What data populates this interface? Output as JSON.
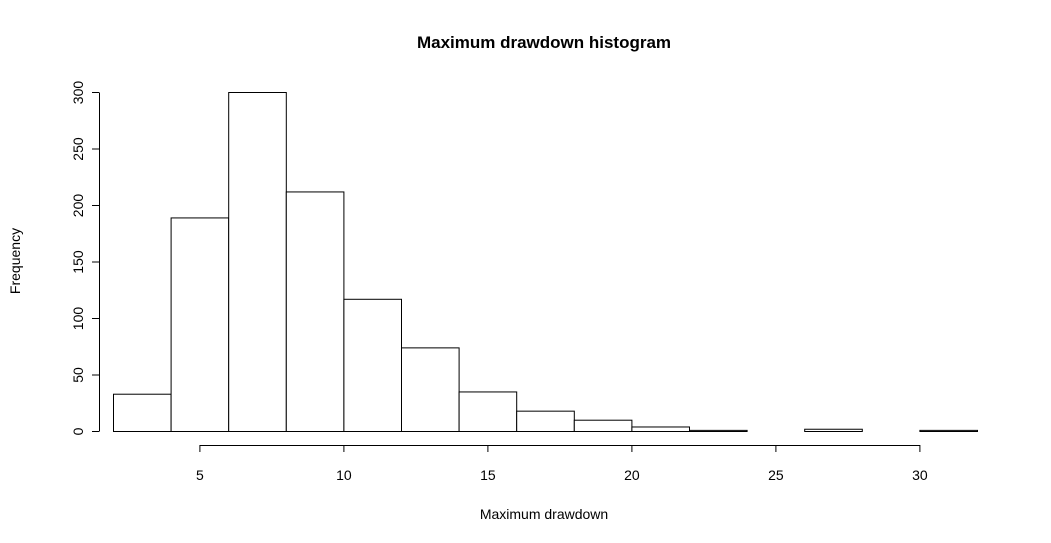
{
  "chart_data": {
    "type": "bar",
    "title": "Maximum drawdown histogram",
    "xlabel": "Maximum drawdown",
    "ylabel": "Frequency",
    "bins": [
      {
        "x0": 2,
        "x1": 4,
        "count": 33
      },
      {
        "x0": 4,
        "x1": 6,
        "count": 189
      },
      {
        "x0": 6,
        "x1": 8,
        "count": 300
      },
      {
        "x0": 8,
        "x1": 10,
        "count": 212
      },
      {
        "x0": 10,
        "x1": 12,
        "count": 117
      },
      {
        "x0": 12,
        "x1": 14,
        "count": 74
      },
      {
        "x0": 14,
        "x1": 16,
        "count": 35
      },
      {
        "x0": 16,
        "x1": 18,
        "count": 18
      },
      {
        "x0": 18,
        "x1": 20,
        "count": 10
      },
      {
        "x0": 20,
        "x1": 22,
        "count": 4
      },
      {
        "x0": 22,
        "x1": 24,
        "count": 1
      },
      {
        "x0": 24,
        "x1": 26,
        "count": 0
      },
      {
        "x0": 26,
        "x1": 28,
        "count": 2
      },
      {
        "x0": 28,
        "x1": 30,
        "count": 0
      },
      {
        "x0": 30,
        "x1": 32,
        "count": 1
      }
    ],
    "xlim": [
      2,
      32
    ],
    "ylim": [
      0,
      300
    ],
    "x_ticks": [
      5,
      10,
      15,
      20,
      25,
      30
    ],
    "y_ticks": [
      0,
      50,
      100,
      150,
      200,
      250,
      300
    ],
    "bar_fill": "#ffffff",
    "bar_stroke": "#000000",
    "grid": false,
    "legend": "none"
  }
}
